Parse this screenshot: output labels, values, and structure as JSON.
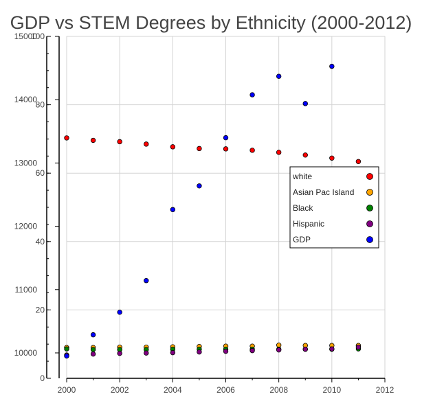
{
  "chart_data": {
    "type": "scatter",
    "title": "GDP vs STEM Degrees by Ethnicity (2000-2012)",
    "xlabel": "",
    "ylabel": "",
    "xlim": [
      2000,
      2012
    ],
    "ylim_left": [
      0,
      100
    ],
    "ylim_gdp": [
      10000,
      15000
    ],
    "x_ticks": [
      "2000",
      "2002",
      "2004",
      "2006",
      "2008",
      "2010",
      "2012"
    ],
    "y_ticks_left": [
      "0",
      "20",
      "40",
      "60",
      "80",
      "100"
    ],
    "y_ticks_gdp": [
      "10000",
      "11000",
      "12000",
      "13000",
      "14000",
      "15000"
    ],
    "grid": true,
    "legend_position": "center-right",
    "series": [
      {
        "name": "white",
        "color": "#ff0000",
        "axis": "left",
        "x": [
          2000,
          2001,
          2002,
          2003,
          2004,
          2005,
          2006,
          2007,
          2008,
          2009,
          2010,
          2011
        ],
        "values": [
          70.3,
          69.6,
          69.2,
          68.5,
          67.7,
          67.2,
          67.1,
          66.7,
          66.1,
          65.3,
          64.4,
          63.4
        ]
      },
      {
        "name": "Asian Pac Island",
        "color": "#ffa500",
        "axis": "left",
        "x": [
          2000,
          2001,
          2002,
          2003,
          2004,
          2005,
          2006,
          2007,
          2008,
          2009,
          2010,
          2011
        ],
        "values": [
          9.0,
          9.0,
          9.1,
          9.1,
          9.2,
          9.3,
          9.4,
          9.4,
          9.7,
          9.6,
          9.6,
          9.6
        ]
      },
      {
        "name": "Black",
        "color": "#008000",
        "axis": "left",
        "x": [
          2000,
          2001,
          2002,
          2003,
          2004,
          2005,
          2006,
          2007,
          2008,
          2009,
          2010,
          2011
        ],
        "values": [
          8.6,
          8.4,
          8.4,
          8.4,
          8.5,
          8.5,
          8.5,
          8.5,
          8.5,
          8.5,
          8.5,
          8.6
        ]
      },
      {
        "name": "Hispanic",
        "color": "#800080",
        "axis": "left",
        "x": [
          2000,
          2001,
          2002,
          2003,
          2004,
          2005,
          2006,
          2007,
          2008,
          2009,
          2010,
          2011
        ],
        "values": [
          6.8,
          7.1,
          7.3,
          7.4,
          7.5,
          7.7,
          7.9,
          8.1,
          8.3,
          8.5,
          8.6,
          9.1
        ]
      },
      {
        "name": "GDP",
        "color": "#0000ff",
        "axis": "gdp",
        "x": [
          2000,
          2001,
          2002,
          2003,
          2004,
          2005,
          2006,
          2007,
          2008,
          2009,
          2010
        ],
        "values": [
          9951,
          10286,
          10642,
          11142,
          12264,
          12638,
          13399,
          14077,
          14369,
          13939,
          14527
        ]
      }
    ]
  }
}
